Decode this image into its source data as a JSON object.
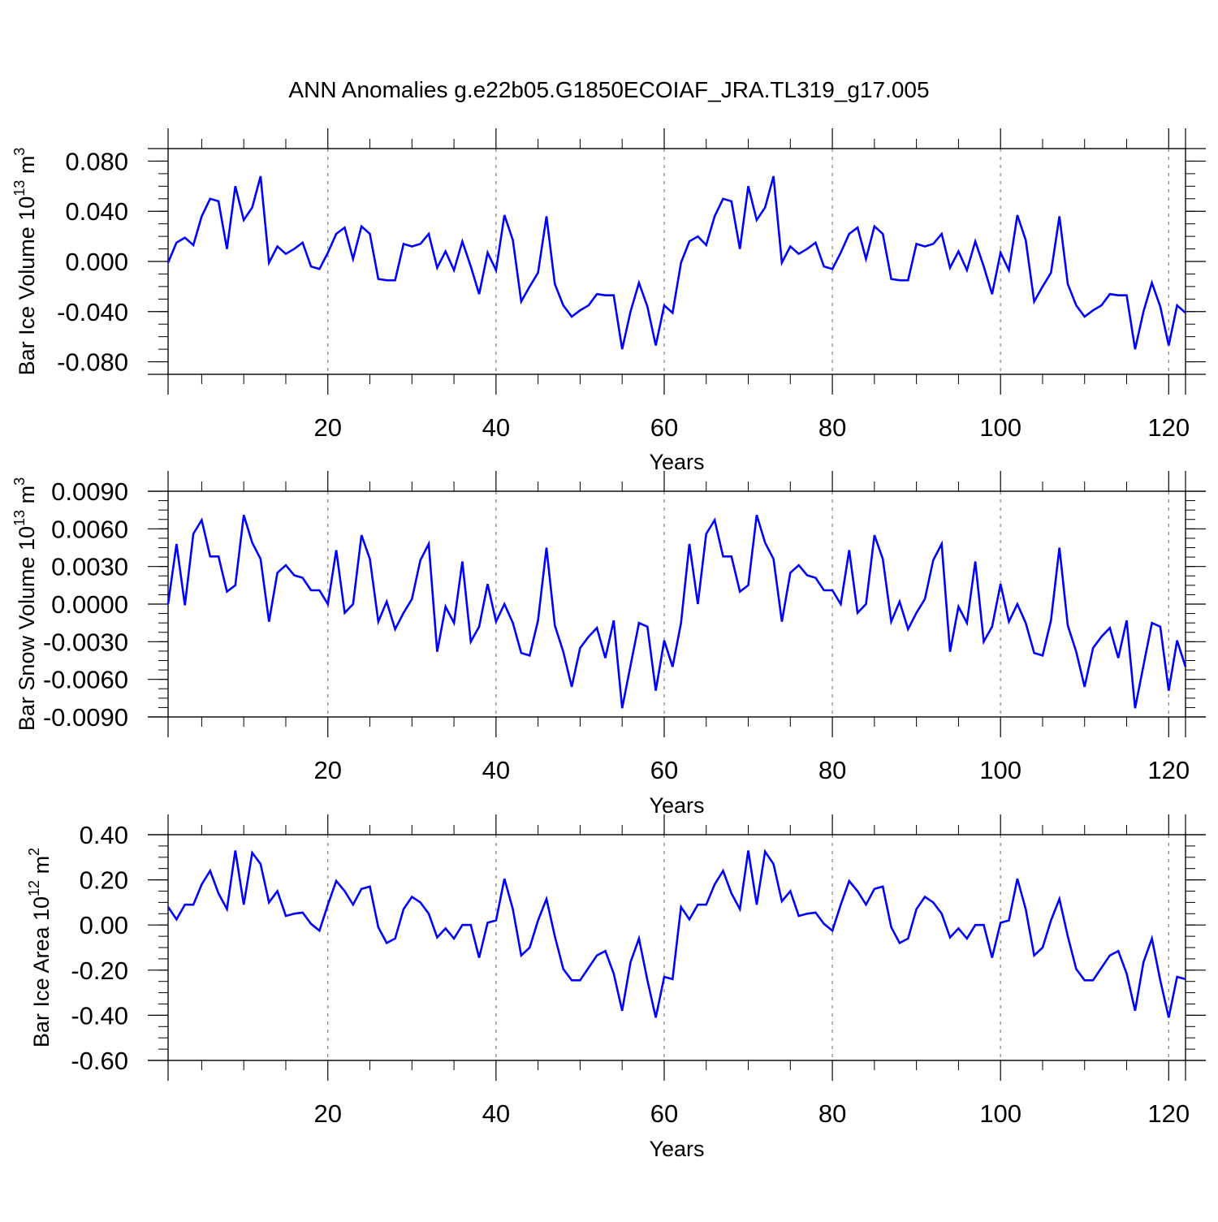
{
  "figure": {
    "title": "ANN Anomalies g.e22b05.G1850ECOIAF_JRA.TL319_g17.005"
  },
  "colors": {
    "line": "#0000ff",
    "axis": "#000000",
    "vgrid": "#808080"
  },
  "chart_data": [
    {
      "type": "line",
      "ylabel_main": "Bar Ice Volume 10",
      "ylabel_exp": "13",
      "ylabel_unit": "m",
      "ylabel_unit_exp": "3",
      "xlabel": "Years",
      "xlim": [
        1,
        122
      ],
      "ylim": [
        -0.09,
        0.09
      ],
      "x_ticks": [
        20,
        40,
        60,
        80,
        100,
        120
      ],
      "x_tick_labels": [
        "20",
        "40",
        "60",
        "80",
        "100",
        "120"
      ],
      "y_ticks": [
        -0.08,
        -0.04,
        0.0,
        0.04,
        0.08
      ],
      "y_tick_labels": [
        "-0.080",
        "-0.040",
        "0.000",
        "0.040",
        "0.080"
      ],
      "grid": "vertical dashed at major x ticks",
      "series": [
        {
          "values": [
            -0.001,
            0.015,
            0.019,
            0.013,
            0.036,
            0.05,
            0.048,
            0.01,
            0.06,
            0.033,
            0.043,
            0.068,
            -0.001,
            0.012,
            0.006,
            0.01,
            0.015,
            -0.004,
            -0.006,
            0.007,
            0.022,
            0.027,
            0.002,
            0.028,
            0.022,
            -0.014,
            -0.015,
            -0.015,
            0.014,
            0.012,
            0.014,
            0.022,
            -0.005,
            0.008,
            -0.007,
            0.016,
            -0.004,
            -0.026,
            0.007,
            -0.007,
            0.037,
            0.017,
            -0.032,
            -0.02,
            -0.009,
            0.036,
            -0.018,
            -0.035,
            -0.044,
            -0.039,
            -0.035,
            -0.026,
            -0.027,
            -0.027,
            -0.07,
            -0.04,
            -0.017,
            -0.036,
            -0.067,
            -0.035,
            -0.041,
            -0.001,
            0.016,
            0.02,
            0.013,
            0.036,
            0.05,
            0.048,
            0.01,
            0.06,
            0.033,
            0.043,
            0.068,
            -0.001,
            0.012,
            0.006,
            0.01,
            0.015,
            -0.004,
            -0.006,
            0.007,
            0.022,
            0.027,
            0.002,
            0.028,
            0.022,
            -0.014,
            -0.015,
            -0.015,
            0.014,
            0.012,
            0.014,
            0.022,
            -0.005,
            0.008,
            -0.007,
            0.016,
            -0.004,
            -0.026,
            0.007,
            -0.007,
            0.037,
            0.017,
            -0.032,
            -0.02,
            -0.009,
            0.036,
            -0.018,
            -0.035,
            -0.044,
            -0.039,
            -0.035,
            -0.026,
            -0.027,
            -0.027,
            -0.07,
            -0.04,
            -0.017,
            -0.036,
            -0.067,
            -0.035,
            -0.041
          ]
        }
      ]
    },
    {
      "type": "line",
      "ylabel_main": "Bar Snow Volume 10",
      "ylabel_exp": "13",
      "ylabel_unit": "m",
      "ylabel_unit_exp": "3",
      "xlabel": "Years",
      "xlim": [
        1,
        122
      ],
      "ylim": [
        -0.009,
        0.009
      ],
      "x_ticks": [
        20,
        40,
        60,
        80,
        100,
        120
      ],
      "x_tick_labels": [
        "20",
        "40",
        "60",
        "80",
        "100",
        "120"
      ],
      "y_ticks": [
        -0.009,
        -0.006,
        -0.003,
        0.0,
        0.003,
        0.006,
        0.009
      ],
      "y_tick_labels": [
        "-0.0090",
        "-0.0060",
        "-0.0030",
        "0.0000",
        "0.0030",
        "0.0060",
        "0.0090"
      ],
      "grid": "vertical dashed at major x ticks",
      "series": [
        {
          "values": [
            0.0,
            0.0048,
            -0.0001,
            0.0056,
            0.0067,
            0.0038,
            0.0038,
            0.001,
            0.0015,
            0.0071,
            0.0049,
            0.0036,
            -0.0014,
            0.0025,
            0.0031,
            0.0023,
            0.0021,
            0.0011,
            0.0011,
            0.0,
            0.0043,
            -0.0007,
            0.0,
            0.0055,
            0.0036,
            -0.0014,
            0.0002,
            -0.002,
            -0.0007,
            0.0004,
            0.0035,
            0.0048,
            -0.0038,
            -0.0002,
            -0.0015,
            0.0034,
            -0.003,
            -0.0018,
            0.0016,
            -0.0014,
            0.0,
            -0.0015,
            -0.0039,
            -0.0041,
            -0.0013,
            0.0045,
            -0.0017,
            -0.0038,
            -0.0066,
            -0.0035,
            -0.0026,
            -0.0019,
            -0.0043,
            -0.0013,
            -0.0083,
            -0.0049,
            -0.0015,
            -0.0018,
            -0.0069,
            -0.0029,
            -0.005,
            -0.0015,
            0.0048,
            0.0,
            0.0056,
            0.0067,
            0.0038,
            0.0038,
            0.001,
            0.0015,
            0.0071,
            0.0049,
            0.0036,
            -0.0014,
            0.0025,
            0.0031,
            0.0023,
            0.0021,
            0.0011,
            0.0011,
            0.0,
            0.0043,
            -0.0007,
            0.0,
            0.0055,
            0.0036,
            -0.0014,
            0.0002,
            -0.002,
            -0.0007,
            0.0004,
            0.0035,
            0.0048,
            -0.0038,
            -0.0002,
            -0.0015,
            0.0034,
            -0.003,
            -0.0018,
            0.0016,
            -0.0014,
            0.0,
            -0.0015,
            -0.0039,
            -0.0041,
            -0.0013,
            0.0045,
            -0.0017,
            -0.0038,
            -0.0066,
            -0.0035,
            -0.0026,
            -0.0019,
            -0.0043,
            -0.0013,
            -0.0083,
            -0.0049,
            -0.0015,
            -0.0018,
            -0.0069,
            -0.0029,
            -0.005
          ]
        }
      ]
    },
    {
      "type": "line",
      "ylabel_main": "Bar Ice Area 10",
      "ylabel_exp": "12",
      "ylabel_unit": "m",
      "ylabel_unit_exp": "2",
      "xlabel": "Years",
      "xlim": [
        1,
        122
      ],
      "ylim": [
        -0.6,
        0.4
      ],
      "x_ticks": [
        20,
        40,
        60,
        80,
        100,
        120
      ],
      "x_tick_labels": [
        "20",
        "40",
        "60",
        "80",
        "100",
        "120"
      ],
      "y_ticks": [
        -0.6,
        -0.4,
        -0.2,
        0.0,
        0.2,
        0.4
      ],
      "y_tick_labels": [
        "-0.60",
        "-0.40",
        "-0.20",
        "0.00",
        "0.20",
        "0.40"
      ],
      "grid": "vertical dashed at major x ticks",
      "series": [
        {
          "values": [
            0.08,
            0.025,
            0.09,
            0.09,
            0.18,
            0.24,
            0.14,
            0.07,
            0.33,
            0.09,
            0.32,
            0.27,
            0.1,
            0.15,
            0.04,
            0.05,
            0.055,
            0.005,
            -0.025,
            0.09,
            0.195,
            0.15,
            0.09,
            0.16,
            0.17,
            -0.01,
            -0.08,
            -0.06,
            0.07,
            0.125,
            0.1,
            0.05,
            -0.055,
            -0.015,
            -0.06,
            0.0,
            0.0,
            -0.145,
            0.01,
            0.02,
            0.205,
            0.07,
            -0.135,
            -0.1,
            0.02,
            0.115,
            -0.05,
            -0.195,
            -0.245,
            -0.245,
            -0.19,
            -0.135,
            -0.115,
            -0.215,
            -0.38,
            -0.165,
            -0.06,
            -0.245,
            -0.41,
            -0.23,
            -0.24,
            0.08,
            0.025,
            0.09,
            0.09,
            0.18,
            0.24,
            0.14,
            0.07,
            0.33,
            0.09,
            0.325,
            0.27,
            0.105,
            0.15,
            0.04,
            0.05,
            0.055,
            0.005,
            -0.025,
            0.09,
            0.195,
            0.15,
            0.09,
            0.16,
            0.17,
            -0.01,
            -0.08,
            -0.06,
            0.07,
            0.125,
            0.1,
            0.05,
            -0.055,
            -0.015,
            -0.06,
            0.0,
            0.0,
            -0.145,
            0.01,
            0.02,
            0.205,
            0.07,
            -0.135,
            -0.1,
            0.02,
            0.115,
            -0.05,
            -0.195,
            -0.245,
            -0.245,
            -0.19,
            -0.135,
            -0.115,
            -0.215,
            -0.38,
            -0.165,
            -0.06,
            -0.245,
            -0.41,
            -0.23,
            -0.24
          ]
        }
      ]
    }
  ]
}
